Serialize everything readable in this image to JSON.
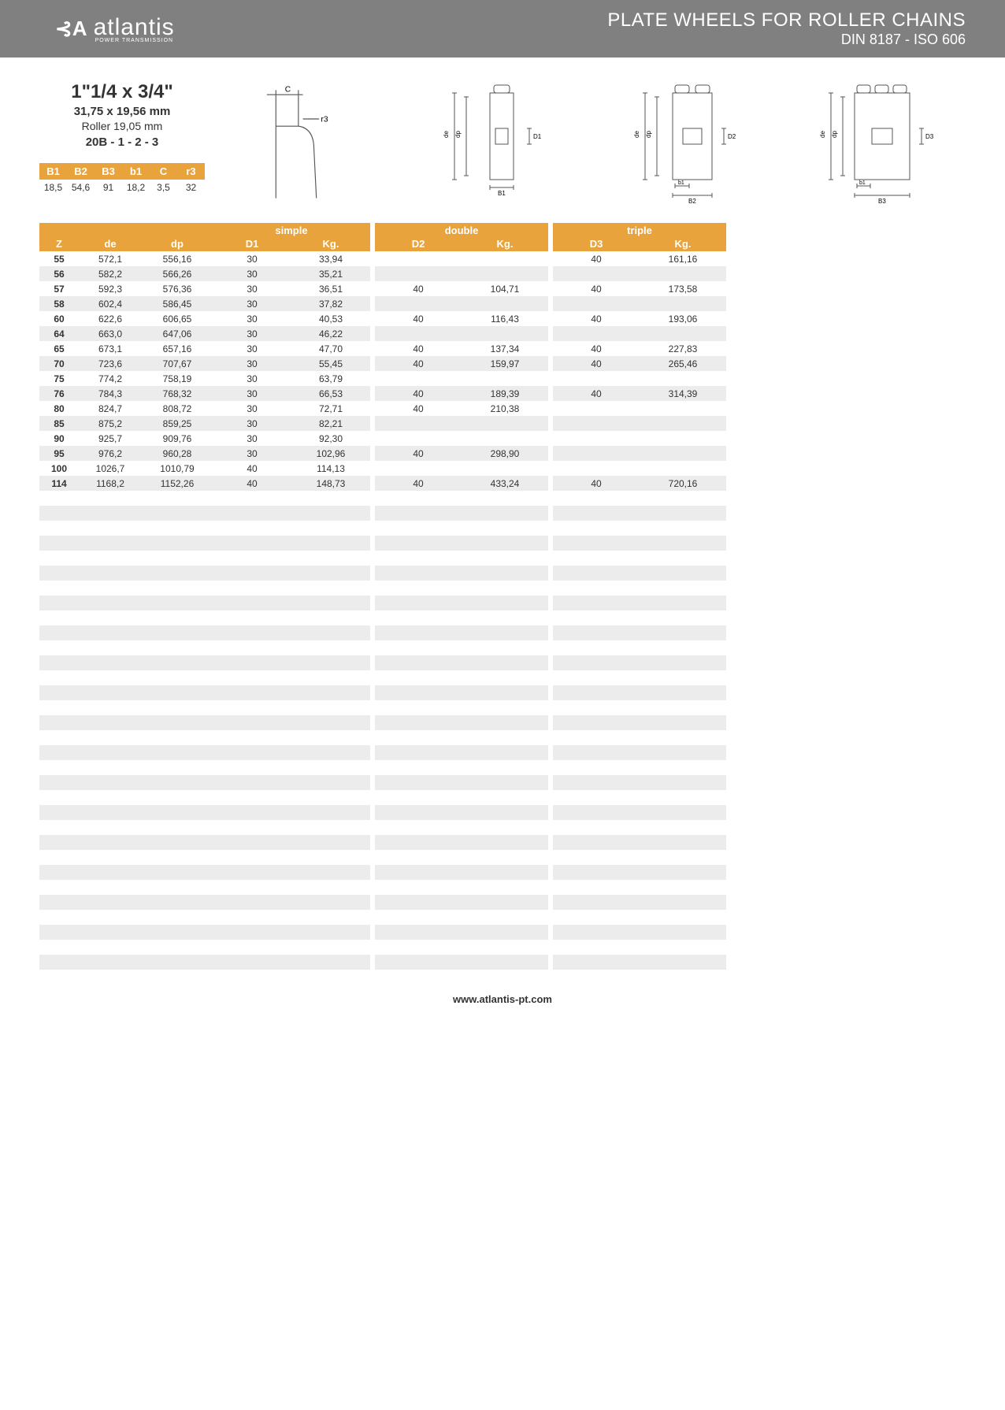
{
  "header": {
    "logo_text": "atlantis",
    "logo_sub": "POWER TRANSMISSION",
    "title": "PLATE WHEELS FOR ROLLER CHAINS",
    "subtitle": "DIN 8187 - ISO 606"
  },
  "spec": {
    "title": "1\"1/4 x 3/4\"",
    "line1": "31,75 x 19,56 mm",
    "line2": "Roller 19,05 mm",
    "code": "20B - 1 - 2 - 3"
  },
  "small_table": {
    "headers": [
      "B1",
      "B2",
      "B3",
      "b1",
      "C",
      "r3"
    ],
    "row": [
      "18,5",
      "54,6",
      "91",
      "18,2",
      "3,5",
      "32"
    ]
  },
  "diagram_labels": {
    "c": "C",
    "r3": "r3",
    "de": "de",
    "dp": "dp",
    "D1": "D1",
    "D2": "D2",
    "D3": "D3",
    "b1": "b1",
    "B1": "B1",
    "B2": "B2",
    "B3": "B3"
  },
  "main_table": {
    "group_titles": {
      "simple": "simple",
      "double": "double",
      "triple": "triple"
    },
    "headers": {
      "z": "Z",
      "de": "de",
      "dp": "dp",
      "d1": "D1",
      "kg": "Kg.",
      "d2": "D2",
      "d3": "D3"
    },
    "total_rows": 48,
    "rows": [
      {
        "z": "55",
        "de": "572,1",
        "dp": "556,16",
        "d1": "30",
        "kg1": "33,94",
        "d2": "",
        "kg2": "",
        "d3": "40",
        "kg3": "161,16"
      },
      {
        "z": "56",
        "de": "582,2",
        "dp": "566,26",
        "d1": "30",
        "kg1": "35,21",
        "d2": "",
        "kg2": "",
        "d3": "",
        "kg3": ""
      },
      {
        "z": "57",
        "de": "592,3",
        "dp": "576,36",
        "d1": "30",
        "kg1": "36,51",
        "d2": "40",
        "kg2": "104,71",
        "d3": "40",
        "kg3": "173,58"
      },
      {
        "z": "58",
        "de": "602,4",
        "dp": "586,45",
        "d1": "30",
        "kg1": "37,82",
        "d2": "",
        "kg2": "",
        "d3": "",
        "kg3": ""
      },
      {
        "z": "60",
        "de": "622,6",
        "dp": "606,65",
        "d1": "30",
        "kg1": "40,53",
        "d2": "40",
        "kg2": "116,43",
        "d3": "40",
        "kg3": "193,06"
      },
      {
        "z": "64",
        "de": "663,0",
        "dp": "647,06",
        "d1": "30",
        "kg1": "46,22",
        "d2": "",
        "kg2": "",
        "d3": "",
        "kg3": ""
      },
      {
        "z": "65",
        "de": "673,1",
        "dp": "657,16",
        "d1": "30",
        "kg1": "47,70",
        "d2": "40",
        "kg2": "137,34",
        "d3": "40",
        "kg3": "227,83"
      },
      {
        "z": "70",
        "de": "723,6",
        "dp": "707,67",
        "d1": "30",
        "kg1": "55,45",
        "d2": "40",
        "kg2": "159,97",
        "d3": "40",
        "kg3": "265,46"
      },
      {
        "z": "75",
        "de": "774,2",
        "dp": "758,19",
        "d1": "30",
        "kg1": "63,79",
        "d2": "",
        "kg2": "",
        "d3": "",
        "kg3": ""
      },
      {
        "z": "76",
        "de": "784,3",
        "dp": "768,32",
        "d1": "30",
        "kg1": "66,53",
        "d2": "40",
        "kg2": "189,39",
        "d3": "40",
        "kg3": "314,39"
      },
      {
        "z": "80",
        "de": "824,7",
        "dp": "808,72",
        "d1": "30",
        "kg1": "72,71",
        "d2": "40",
        "kg2": "210,38",
        "d3": "",
        "kg3": ""
      },
      {
        "z": "85",
        "de": "875,2",
        "dp": "859,25",
        "d1": "30",
        "kg1": "82,21",
        "d2": "",
        "kg2": "",
        "d3": "",
        "kg3": ""
      },
      {
        "z": "90",
        "de": "925,7",
        "dp": "909,76",
        "d1": "30",
        "kg1": "92,30",
        "d2": "",
        "kg2": "",
        "d3": "",
        "kg3": ""
      },
      {
        "z": "95",
        "de": "976,2",
        "dp": "960,28",
        "d1": "30",
        "kg1": "102,96",
        "d2": "40",
        "kg2": "298,90",
        "d3": "",
        "kg3": ""
      },
      {
        "z": "100",
        "de": "1026,7",
        "dp": "1010,79",
        "d1": "40",
        "kg1": "114,13",
        "d2": "",
        "kg2": "",
        "d3": "",
        "kg3": ""
      },
      {
        "z": "114",
        "de": "1168,2",
        "dp": "1152,26",
        "d1": "40",
        "kg1": "148,73",
        "d2": "40",
        "kg2": "433,24",
        "d3": "40",
        "kg3": "720,16"
      }
    ]
  },
  "footer": {
    "url": "www.atlantis-pt.com"
  },
  "colors": {
    "accent": "#e8a33d",
    "header_bg": "#808080",
    "row_odd": "#ececec"
  }
}
